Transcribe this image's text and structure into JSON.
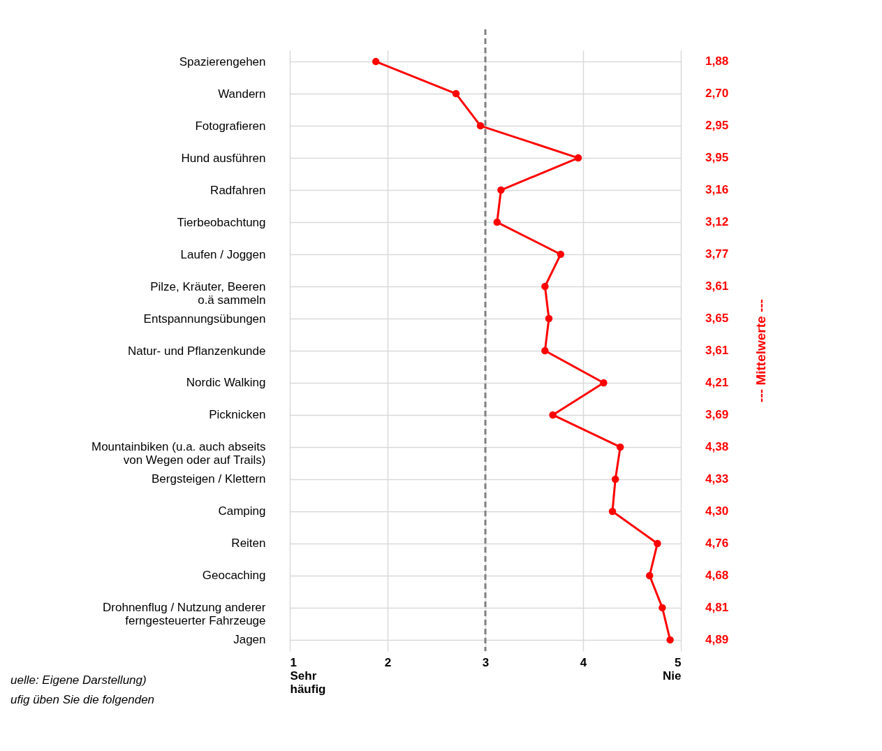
{
  "chart_data": {
    "type": "line",
    "categories": [
      "Spazierengehen",
      "Wandern",
      "Fotografieren",
      "Hund ausführen",
      "Radfahren",
      "Tierbeobachtung",
      "Laufen / Joggen",
      "Pilze, Kräuter, Beeren\no.ä sammeln",
      "Entspannungsübungen",
      "Natur- und Pflanzenkunde",
      "Nordic Walking",
      "Picknicken",
      "Mountainbiken (u.a. auch abseits\nvon Wegen oder auf Trails)",
      "Bergsteigen / Klettern",
      "Camping",
      "Reiten",
      "Geocaching",
      "Drohnenflug / Nutzung anderer\nferngesteuerter Fahrzeuge",
      "Jagen"
    ],
    "series": [
      {
        "color": "#ff0000",
        "values": [
          1.88,
          2.7,
          2.95,
          3.95,
          3.16,
          3.12,
          3.77,
          3.61,
          3.65,
          3.61,
          4.21,
          3.69,
          4.38,
          4.33,
          4.3,
          4.76,
          4.68,
          4.81,
          4.89
        ]
      }
    ],
    "value_labels": [
      "1,88",
      "2,70",
      "2,95",
      "3,95",
      "3,16",
      "3,12",
      "3,77",
      "3,61",
      "3,65",
      "3,61",
      "4,21",
      "3,69",
      "4,38",
      "4,33",
      "4,30",
      "4,76",
      "4,68",
      "4,81",
      "4,89"
    ],
    "orientation": "horizontal",
    "xlim": [
      1,
      5
    ],
    "xticks": [
      {
        "value": 1,
        "label": "1\nSehr\nhäufig"
      },
      2,
      3,
      4,
      {
        "value": 5,
        "label": "5\nNie"
      }
    ],
    "ref_lines": [
      {
        "axis": "x",
        "value": 3,
        "color": "#808080",
        "line_style": "dashed"
      }
    ],
    "grid": true,
    "marker": "circle",
    "line_style": "solid",
    "annotations": [
      "--- Mittelwerte ---",
      "uelle: Eigene Darstellung)",
      "ufig üben Sie die folgenden"
    ]
  }
}
